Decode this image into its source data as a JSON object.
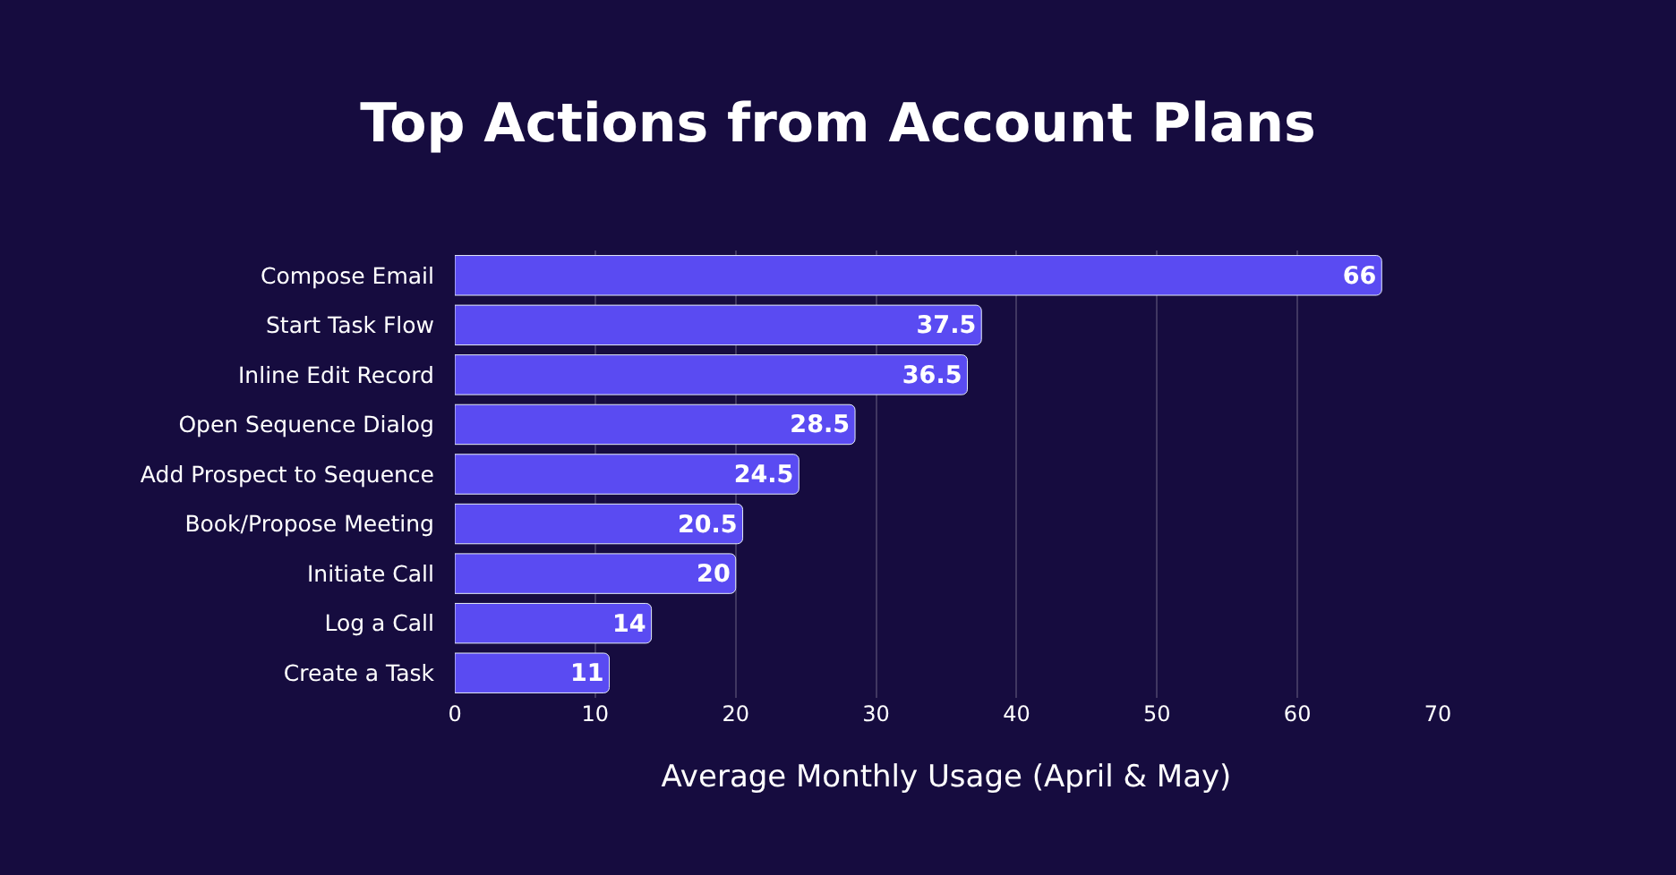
{
  "chart_data": {
    "type": "bar",
    "orientation": "horizontal",
    "title": "Top Actions from Account Plans",
    "xlabel": "Average Monthly Usage (April & May)",
    "categories": [
      "Compose Email",
      "Start Task Flow",
      "Inline Edit Record",
      "Open Sequence Dialog",
      "Add Prospect to Sequence",
      "Book/Propose Meeting",
      "Initiate Call",
      "Log a Call",
      "Create a Task"
    ],
    "values": [
      66,
      37.5,
      36.5,
      28.5,
      24.5,
      20.5,
      20,
      14,
      11
    ],
    "color": "#5a4bf2",
    "data_labels": true,
    "xlim": [
      0,
      70
    ],
    "xticks": [
      0,
      10,
      20,
      30,
      40,
      50,
      60,
      70
    ],
    "grid": "x",
    "legend": false
  }
}
